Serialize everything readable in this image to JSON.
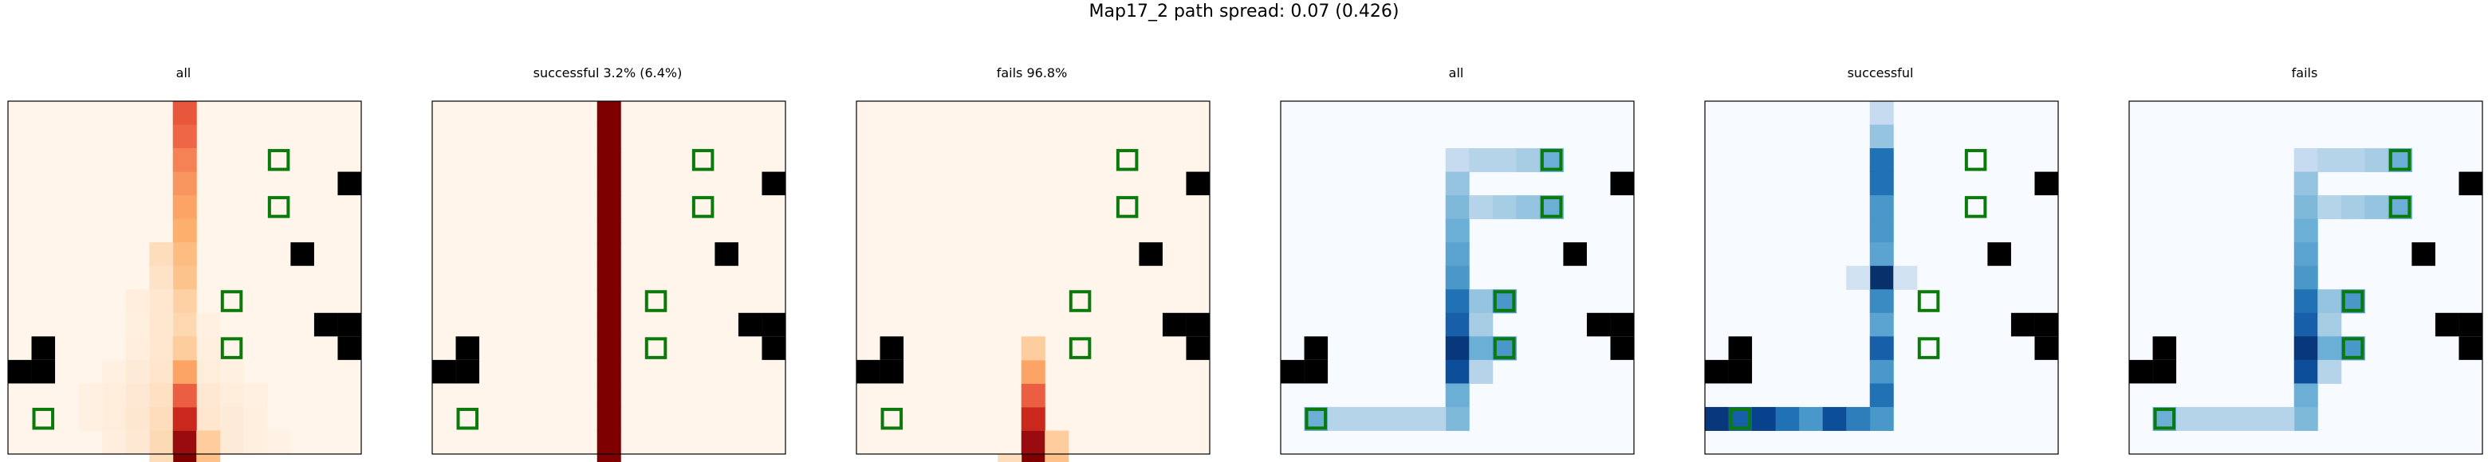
{
  "title": "Map17_2 path spread: 0.07 (0.426)",
  "chart_data": [
    {
      "type": "heatmap",
      "title": "all",
      "colormap": "Reds",
      "grid": false,
      "cells": [
        [
          7,
          0,
          0.62
        ],
        [
          7,
          1,
          0.58
        ],
        [
          7,
          2,
          0.52
        ],
        [
          7,
          3,
          0.48
        ],
        [
          7,
          4,
          0.45
        ],
        [
          7,
          5,
          0.42
        ],
        [
          7,
          6,
          0.37
        ],
        [
          6,
          6,
          0.2
        ],
        [
          7,
          7,
          0.34
        ],
        [
          6,
          7,
          0.16
        ],
        [
          7,
          8,
          0.28
        ],
        [
          6,
          8,
          0.14
        ],
        [
          5,
          8,
          0.07
        ],
        [
          7,
          9,
          0.24
        ],
        [
          6,
          9,
          0.14
        ],
        [
          5,
          9,
          0.06
        ],
        [
          8,
          9,
          0.05
        ],
        [
          7,
          10,
          0.23
        ],
        [
          6,
          10,
          0.14
        ],
        [
          5,
          10,
          0.07
        ],
        [
          8,
          10,
          0.06
        ],
        [
          7,
          11,
          0.2
        ],
        [
          6,
          11,
          0.15
        ],
        [
          5,
          11,
          0.1
        ],
        [
          4,
          11,
          0.05
        ],
        [
          8,
          11,
          0.08
        ],
        [
          9,
          11,
          0.05
        ],
        [
          7,
          12,
          0.16
        ],
        [
          6,
          12,
          0.18
        ],
        [
          5,
          12,
          0.12
        ],
        [
          4,
          12,
          0.08
        ],
        [
          3,
          12,
          0.05
        ],
        [
          8,
          12,
          0.12
        ],
        [
          9,
          12,
          0.08
        ],
        [
          10,
          12,
          0.05
        ],
        [
          7,
          13,
          0.12
        ],
        [
          6,
          13,
          0.2
        ],
        [
          5,
          13,
          0.13
        ],
        [
          4,
          13,
          0.08
        ],
        [
          3,
          13,
          0.05
        ],
        [
          8,
          13,
          0.14
        ],
        [
          9,
          13,
          0.1
        ],
        [
          10,
          13,
          0.06
        ],
        [
          7,
          14,
          0.22
        ],
        [
          6,
          14,
          0.22
        ],
        [
          5,
          14,
          0.12
        ],
        [
          4,
          14,
          0.07
        ],
        [
          8,
          14,
          0.15
        ],
        [
          9,
          14,
          0.1
        ],
        [
          10,
          14,
          0.06
        ],
        [
          11,
          14,
          0.04
        ]
      ],
      "cell_values_note": "",
      "hot": [
        [
          7,
          15,
          1.0
        ],
        [
          7,
          14,
          0.9
        ],
        [
          7,
          13,
          0.75
        ],
        [
          7,
          12,
          0.6
        ],
        [
          7,
          11,
          0.45
        ],
        [
          7,
          10,
          0.3
        ],
        [
          8,
          14,
          0.3
        ],
        [
          8,
          15,
          0.35
        ],
        [
          6,
          15,
          0.2
        ]
      ],
      "obstacles": [
        [
          14,
          3
        ],
        [
          12,
          6
        ],
        [
          1,
          10
        ],
        [
          1,
          11
        ],
        [
          13,
          9
        ],
        [
          14,
          9
        ],
        [
          14,
          10
        ],
        [
          0,
          11
        ]
      ],
      "goals": [
        [
          11,
          2
        ],
        [
          11,
          4
        ],
        [
          9,
          8
        ],
        [
          9,
          10
        ],
        [
          1,
          13
        ]
      ]
    },
    {
      "type": "heatmap",
      "title": "successful 3.2% (6.4%)",
      "colormap": "Reds",
      "grid": false,
      "hot": [
        [
          7,
          0,
          1
        ],
        [
          7,
          1,
          1
        ],
        [
          7,
          2,
          1
        ],
        [
          7,
          3,
          1
        ],
        [
          7,
          4,
          1
        ],
        [
          7,
          5,
          1
        ],
        [
          7,
          6,
          1
        ],
        [
          7,
          7,
          1
        ],
        [
          7,
          8,
          1
        ],
        [
          7,
          9,
          1
        ],
        [
          7,
          10,
          1
        ],
        [
          7,
          11,
          1
        ],
        [
          7,
          12,
          1
        ],
        [
          7,
          13,
          1
        ],
        [
          7,
          14,
          1
        ],
        [
          7,
          15,
          1
        ]
      ],
      "obstacles": [
        [
          14,
          3
        ],
        [
          12,
          6
        ],
        [
          1,
          10
        ],
        [
          1,
          11
        ],
        [
          13,
          9
        ],
        [
          14,
          9
        ],
        [
          14,
          10
        ],
        [
          0,
          11
        ]
      ],
      "goals": [
        [
          11,
          2
        ],
        [
          11,
          4
        ],
        [
          9,
          8
        ],
        [
          9,
          10
        ],
        [
          1,
          13
        ]
      ]
    },
    {
      "type": "heatmap",
      "title": "fails 96.8%",
      "colormap": "Reds",
      "grid": false,
      "hot": [
        [
          7,
          15,
          1.0
        ],
        [
          7,
          14,
          0.9
        ],
        [
          7,
          13,
          0.75
        ],
        [
          7,
          12,
          0.6
        ],
        [
          7,
          11,
          0.45
        ],
        [
          7,
          10,
          0.3
        ],
        [
          8,
          14,
          0.3
        ],
        [
          8,
          15,
          0.35
        ],
        [
          6,
          15,
          0.2
        ]
      ],
      "obstacles": [
        [
          14,
          3
        ],
        [
          12,
          6
        ],
        [
          1,
          10
        ],
        [
          1,
          11
        ],
        [
          13,
          9
        ],
        [
          14,
          9
        ],
        [
          14,
          10
        ],
        [
          0,
          11
        ]
      ],
      "goals": [
        [
          11,
          2
        ],
        [
          11,
          4
        ],
        [
          9,
          8
        ],
        [
          9,
          10
        ],
        [
          1,
          13
        ]
      ]
    },
    {
      "type": "heatmap",
      "title": "all",
      "colormap": "Blues",
      "grid": false,
      "hot": [
        [
          7,
          2,
          0.25
        ],
        [
          8,
          2,
          0.3
        ],
        [
          9,
          2,
          0.3
        ],
        [
          10,
          2,
          0.35
        ],
        [
          11,
          2,
          0.5
        ],
        [
          7,
          3,
          0.4
        ],
        [
          7,
          4,
          0.45
        ],
        [
          8,
          4,
          0.3
        ],
        [
          9,
          4,
          0.35
        ],
        [
          10,
          4,
          0.4
        ],
        [
          11,
          4,
          0.5
        ],
        [
          7,
          5,
          0.5
        ],
        [
          7,
          6,
          0.55
        ],
        [
          7,
          7,
          0.6
        ],
        [
          7,
          8,
          0.75
        ],
        [
          8,
          8,
          0.4
        ],
        [
          9,
          8,
          0.6
        ],
        [
          7,
          9,
          0.8
        ],
        [
          8,
          9,
          0.35
        ],
        [
          7,
          10,
          0.95
        ],
        [
          8,
          10,
          0.5
        ],
        [
          9,
          10,
          0.6
        ],
        [
          7,
          11,
          0.85
        ],
        [
          8,
          11,
          0.3
        ],
        [
          7,
          12,
          0.5
        ],
        [
          7,
          13,
          0.45
        ],
        [
          1,
          13,
          0.5
        ],
        [
          2,
          13,
          0.3
        ],
        [
          3,
          13,
          0.3
        ],
        [
          4,
          13,
          0.3
        ],
        [
          5,
          13,
          0.3
        ],
        [
          6,
          13,
          0.3
        ]
      ],
      "obstacles": [
        [
          14,
          3
        ],
        [
          12,
          6
        ],
        [
          1,
          10
        ],
        [
          1,
          11
        ],
        [
          13,
          9
        ],
        [
          14,
          9
        ],
        [
          14,
          10
        ],
        [
          0,
          11
        ]
      ],
      "goals": [
        [
          11,
          2
        ],
        [
          11,
          4
        ],
        [
          9,
          8
        ],
        [
          9,
          10
        ],
        [
          1,
          13
        ]
      ]
    },
    {
      "type": "heatmap",
      "title": "successful",
      "colormap": "Blues",
      "grid": false,
      "hot": [
        [
          7,
          0,
          0.25
        ],
        [
          7,
          1,
          0.4
        ],
        [
          7,
          2,
          0.75
        ],
        [
          7,
          3,
          0.75
        ],
        [
          7,
          4,
          0.6
        ],
        [
          7,
          5,
          0.6
        ],
        [
          7,
          6,
          0.55
        ],
        [
          7,
          7,
          1.0
        ],
        [
          6,
          7,
          0.2
        ],
        [
          8,
          7,
          0.2
        ],
        [
          7,
          8,
          0.65
        ],
        [
          7,
          9,
          0.55
        ],
        [
          7,
          10,
          0.8
        ],
        [
          7,
          11,
          0.6
        ],
        [
          7,
          12,
          0.75
        ],
        [
          7,
          13,
          0.6
        ],
        [
          0,
          13,
          0.95
        ],
        [
          1,
          13,
          0.8
        ],
        [
          2,
          13,
          0.9
        ],
        [
          3,
          13,
          0.75
        ],
        [
          4,
          13,
          0.6
        ],
        [
          5,
          13,
          0.85
        ],
        [
          6,
          13,
          0.7
        ]
      ],
      "obstacles": [
        [
          14,
          3
        ],
        [
          12,
          6
        ],
        [
          1,
          10
        ],
        [
          1,
          11
        ],
        [
          13,
          9
        ],
        [
          14,
          9
        ],
        [
          14,
          10
        ],
        [
          0,
          11
        ]
      ],
      "goals": [
        [
          11,
          2
        ],
        [
          11,
          4
        ],
        [
          9,
          8
        ],
        [
          9,
          10
        ],
        [
          1,
          13
        ]
      ]
    },
    {
      "type": "heatmap",
      "title": "fails",
      "colormap": "Blues",
      "grid": false,
      "hot": [
        [
          7,
          2,
          0.25
        ],
        [
          8,
          2,
          0.3
        ],
        [
          9,
          2,
          0.3
        ],
        [
          10,
          2,
          0.35
        ],
        [
          11,
          2,
          0.5
        ],
        [
          7,
          3,
          0.4
        ],
        [
          7,
          4,
          0.45
        ],
        [
          8,
          4,
          0.3
        ],
        [
          9,
          4,
          0.35
        ],
        [
          10,
          4,
          0.4
        ],
        [
          11,
          4,
          0.5
        ],
        [
          7,
          5,
          0.5
        ],
        [
          7,
          6,
          0.55
        ],
        [
          7,
          7,
          0.6
        ],
        [
          7,
          8,
          0.75
        ],
        [
          8,
          8,
          0.4
        ],
        [
          9,
          8,
          0.6
        ],
        [
          7,
          9,
          0.8
        ],
        [
          8,
          9,
          0.35
        ],
        [
          7,
          10,
          0.95
        ],
        [
          8,
          10,
          0.5
        ],
        [
          9,
          10,
          0.6
        ],
        [
          7,
          11,
          0.85
        ],
        [
          8,
          11,
          0.3
        ],
        [
          7,
          12,
          0.5
        ],
        [
          7,
          13,
          0.45
        ],
        [
          1,
          13,
          0.5
        ],
        [
          2,
          13,
          0.3
        ],
        [
          3,
          13,
          0.3
        ],
        [
          4,
          13,
          0.3
        ],
        [
          5,
          13,
          0.3
        ],
        [
          6,
          13,
          0.3
        ]
      ],
      "obstacles": [
        [
          14,
          3
        ],
        [
          12,
          6
        ],
        [
          1,
          10
        ],
        [
          1,
          11
        ],
        [
          13,
          9
        ],
        [
          14,
          9
        ],
        [
          14,
          10
        ],
        [
          0,
          11
        ]
      ],
      "goals": [
        [
          11,
          2
        ],
        [
          11,
          4
        ],
        [
          9,
          8
        ],
        [
          9,
          10
        ],
        [
          1,
          13
        ]
      ]
    }
  ]
}
